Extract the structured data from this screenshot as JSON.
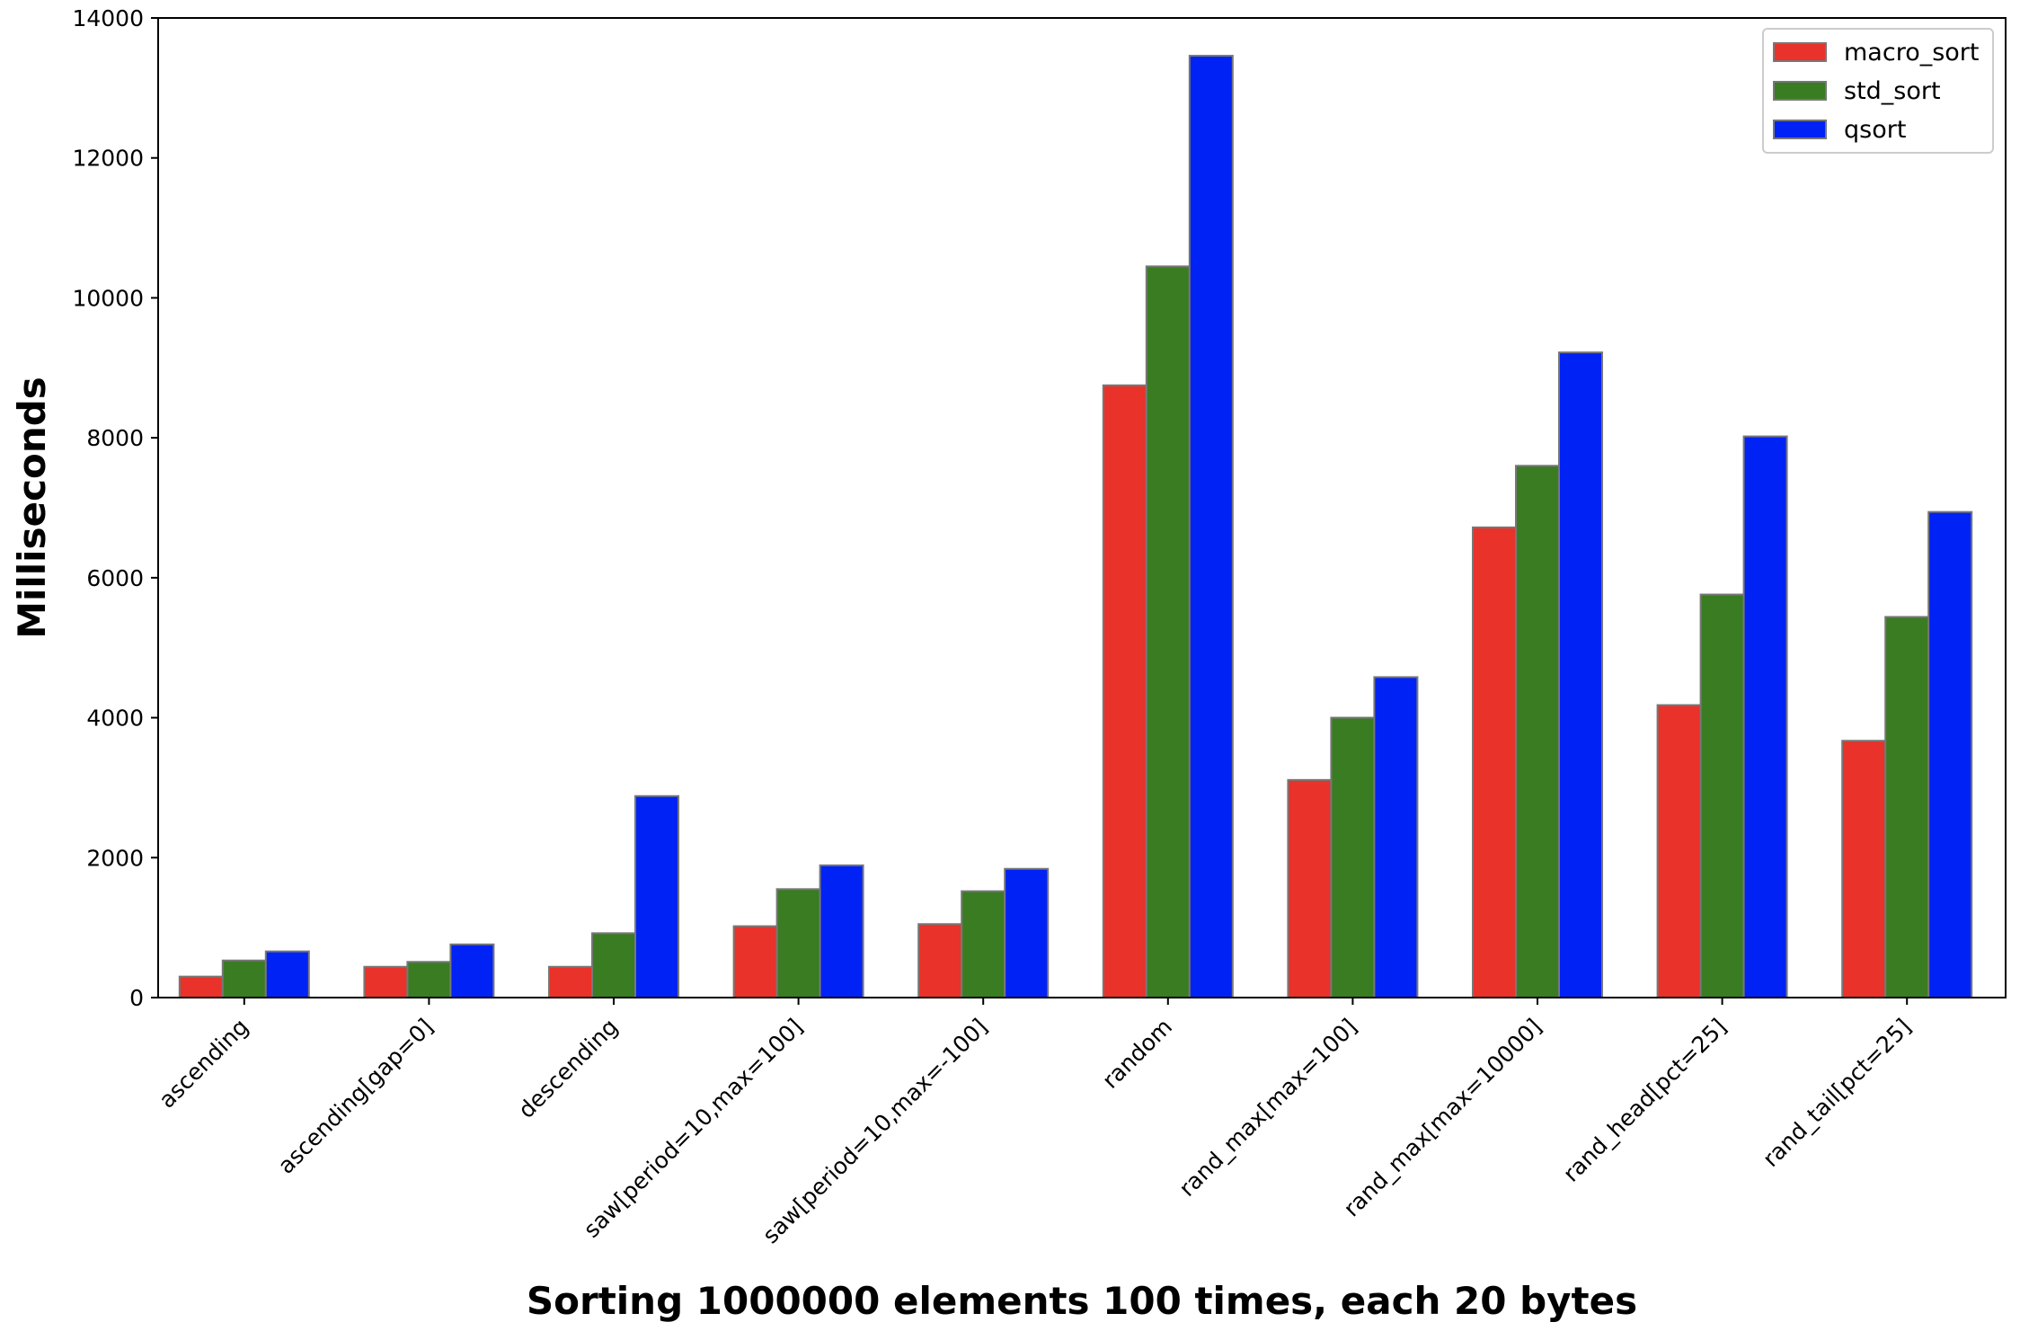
{
  "chart_data": {
    "type": "bar",
    "title": "",
    "xlabel": "Sorting 1000000 elements 100 times, each 20 bytes",
    "ylabel": "Milliseconds",
    "ylim": [
      0,
      14000
    ],
    "yticks": [
      0,
      2000,
      4000,
      6000,
      8000,
      10000,
      12000,
      14000
    ],
    "grid": false,
    "legend_position": "top-right",
    "categories": [
      "ascending",
      "ascending[gap=0]",
      "descending",
      "saw[period=10,max=100]",
      "saw[period=10,max=-100]",
      "random",
      "rand_max[max=100]",
      "rand_max[max=10000]",
      "rand_head[pct=25]",
      "rand_tail[pct=25]"
    ],
    "series": [
      {
        "name": "macro_sort",
        "color": "#e8322a",
        "values": [
          300,
          440,
          440,
          1020,
          1050,
          8750,
          3110,
          6720,
          4180,
          3670
        ]
      },
      {
        "name": "std_sort",
        "color": "#3a7c22",
        "values": [
          530,
          510,
          920,
          1550,
          1520,
          10450,
          4000,
          7600,
          5760,
          5440
        ]
      },
      {
        "name": "qsort",
        "color": "#0022f5",
        "values": [
          660,
          760,
          2880,
          1890,
          1840,
          13460,
          4580,
          9220,
          8020,
          6940
        ]
      }
    ],
    "bar_edge_color": "#777777"
  }
}
